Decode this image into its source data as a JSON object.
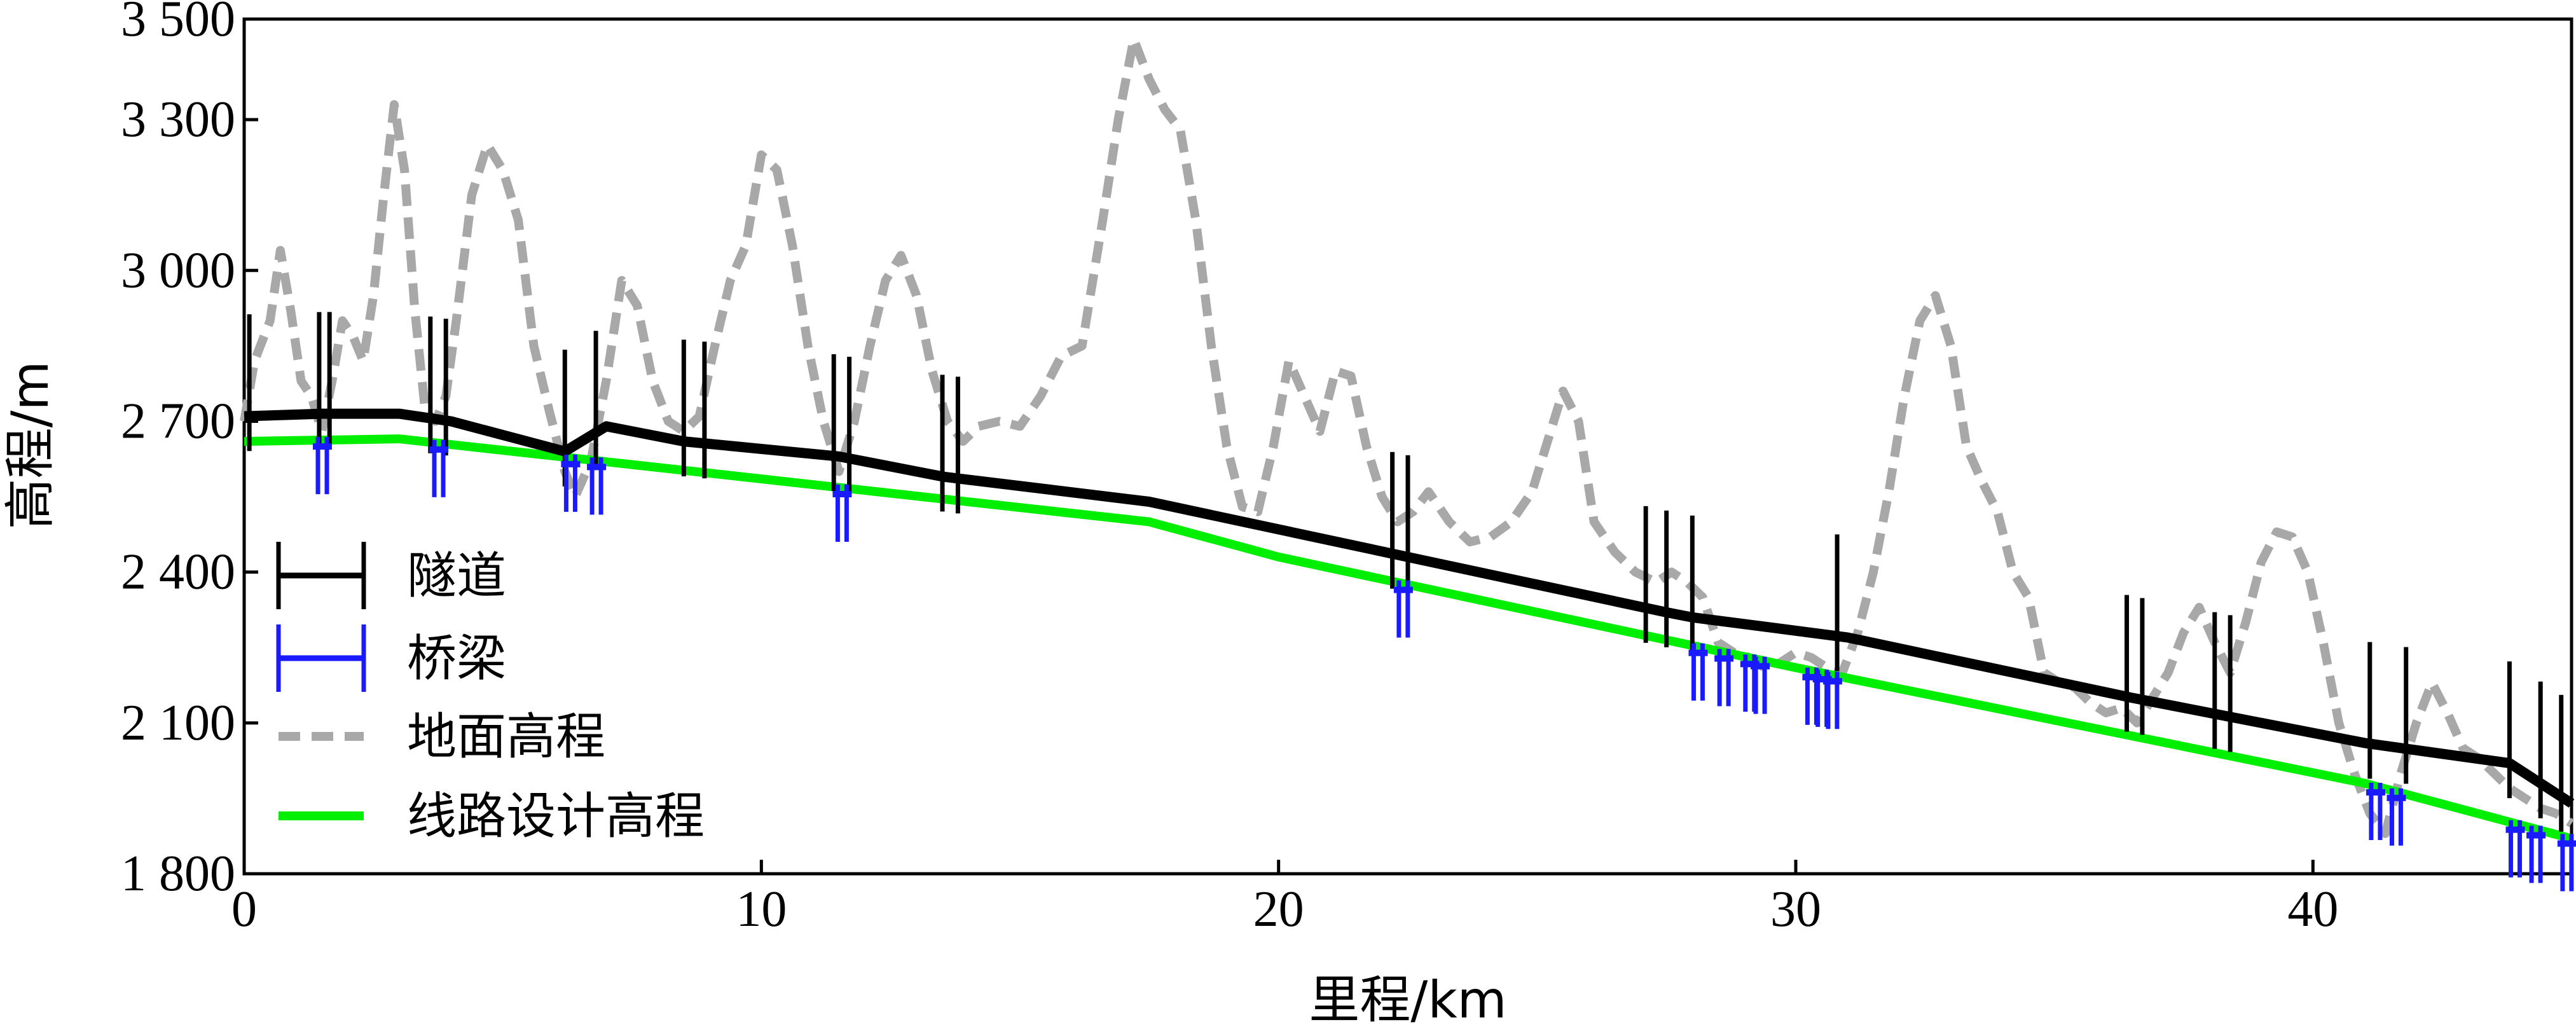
{
  "chart_data": {
    "type": "line",
    "title": "",
    "xlabel": "里程/km",
    "ylabel": "高程/m",
    "xlim": [
      0,
      45
    ],
    "ylim": [
      1800,
      3500
    ],
    "x_ticks": [
      0,
      10,
      20,
      30,
      40
    ],
    "x_tick_labels": [
      "0",
      "10",
      "20",
      "30",
      "40"
    ],
    "y_ticks": [
      1800,
      2100,
      2400,
      2700,
      3000,
      3300,
      3500
    ],
    "y_tick_labels": [
      "1 800",
      "2 100",
      "2 400",
      "2 700",
      "3 000",
      "3 300",
      "3 500"
    ],
    "legend": {
      "position": "lower-left",
      "entries": [
        {
          "label": "隧道",
          "color": "#000000",
          "style": "bracket-line"
        },
        {
          "label": "桥梁",
          "color": "#1a1aff",
          "style": "bracket-line"
        },
        {
          "label": "地面高程",
          "color": "#a8a8a8",
          "style": "dashed"
        },
        {
          "label": "线路设计高程",
          "color": "#00ee00",
          "style": "solid"
        }
      ]
    },
    "series": [
      {
        "name": "地面高程",
        "color": "#a8a8a8",
        "dash": true,
        "x": [
          0,
          0.2,
          0.5,
          0.7,
          0.9,
          1.1,
          1.3,
          1.5,
          1.7,
          1.9,
          2.1,
          2.3,
          2.5,
          2.7,
          2.9,
          3.1,
          3.3,
          3.5,
          3.7,
          3.9,
          4.1,
          4.4,
          4.7,
          5.0,
          5.3,
          5.6,
          5.9,
          6.2,
          6.4,
          6.7,
          7.0,
          7.3,
          7.6,
          7.9,
          8.2,
          8.5,
          8.8,
          9.1,
          9.4,
          9.7,
          10.0,
          10.3,
          10.6,
          10.9,
          11.2,
          11.5,
          11.8,
          12.1,
          12.4,
          12.7,
          13.0,
          13.3,
          13.6,
          13.9,
          14.2,
          14.6,
          15.0,
          15.4,
          15.8,
          16.2,
          16.6,
          16.9,
          17.2,
          17.5,
          17.8,
          18.1,
          18.4,
          18.7,
          19.0,
          19.3,
          19.6,
          19.9,
          20.2,
          20.5,
          20.8,
          21.1,
          21.4,
          21.7,
          22.0,
          22.3,
          22.6,
          22.9,
          23.3,
          23.7,
          24.1,
          24.5,
          24.9,
          25.2,
          25.5,
          25.8,
          26.1,
          26.5,
          26.9,
          27.3,
          27.6,
          27.9,
          28.2,
          28.5,
          28.8,
          29.1,
          29.4,
          29.7,
          30.0,
          30.3,
          30.6,
          30.9,
          31.2,
          31.5,
          31.8,
          32.1,
          32.4,
          32.7,
          33.0,
          33.3,
          33.6,
          33.9,
          34.2,
          34.5,
          34.8,
          35.1,
          35.4,
          35.7,
          36.0,
          36.3,
          36.6,
          36.9,
          37.2,
          37.5,
          37.8,
          38.1,
          38.4,
          38.7,
          39.0,
          39.3,
          39.6,
          39.9,
          40.2,
          40.5,
          40.8,
          41.1,
          41.4,
          41.7,
          42.0,
          42.3,
          42.6,
          42.9,
          43.2,
          43.5,
          43.8,
          44.1,
          44.4,
          44.7,
          45.0
        ],
        "values": [
          2700,
          2820,
          2900,
          3040,
          2920,
          2780,
          2750,
          2680,
          2780,
          2900,
          2870,
          2820,
          2950,
          3150,
          3330,
          3200,
          2920,
          2720,
          2700,
          2750,
          2900,
          3150,
          3250,
          3200,
          3100,
          2850,
          2720,
          2600,
          2550,
          2620,
          2780,
          2980,
          2930,
          2780,
          2700,
          2680,
          2710,
          2850,
          2980,
          3050,
          3230,
          3200,
          3050,
          2850,
          2700,
          2600,
          2700,
          2850,
          2980,
          3030,
          2950,
          2800,
          2700,
          2660,
          2690,
          2700,
          2690,
          2750,
          2830,
          2850,
          3100,
          3300,
          3460,
          3380,
          3320,
          3280,
          3100,
          2850,
          2650,
          2530,
          2520,
          2650,
          2820,
          2750,
          2680,
          2800,
          2790,
          2650,
          2550,
          2500,
          2520,
          2560,
          2500,
          2460,
          2470,
          2500,
          2560,
          2660,
          2760,
          2700,
          2500,
          2440,
          2400,
          2380,
          2400,
          2380,
          2350,
          2260,
          2240,
          2230,
          2210,
          2220,
          2240,
          2230,
          2210,
          2200,
          2280,
          2400,
          2560,
          2750,
          2900,
          2950,
          2850,
          2650,
          2580,
          2520,
          2400,
          2350,
          2200,
          2180,
          2170,
          2140,
          2120,
          2130,
          2100,
          2150,
          2200,
          2280,
          2330,
          2260,
          2200,
          2300,
          2420,
          2480,
          2470,
          2400,
          2260,
          2100,
          2000,
          1920,
          1880,
          2000,
          2100,
          2180,
          2120,
          2050,
          2030,
          2000,
          1970,
          1950,
          1930,
          1920,
          1900
        ]
      },
      {
        "name": "线路设计高程",
        "color": "#00ee00",
        "dash": false,
        "x": [
          0,
          3,
          17.5,
          20,
          30,
          41,
          45
        ],
        "values": [
          2660,
          2665,
          2500,
          2430,
          2210,
          1980,
          1870
        ]
      },
      {
        "name": "隧道",
        "color": "#000000",
        "dash": false,
        "x": [
          0,
          1.5,
          3,
          4,
          6.2,
          7,
          8.5,
          11.5,
          13.5,
          17.5,
          22.5,
          27.5,
          28,
          31,
          36.5,
          41,
          43.8,
          45
        ],
        "values": [
          2710,
          2715,
          2715,
          2700,
          2640,
          2690,
          2660,
          2630,
          2590,
          2540,
          2430,
          2320,
          2310,
          2270,
          2150,
          2060,
          2020,
          1940
        ]
      }
    ],
    "tunnel_marker_x": [
      0.1,
      1.45,
      1.65,
      3.6,
      3.9,
      6.2,
      6.8,
      8.5,
      8.9,
      11.4,
      11.7,
      13.5,
      13.8,
      22.2,
      22.5,
      27.1,
      27.5,
      28,
      30.8,
      36.4,
      36.7,
      38.1,
      38.4,
      41.1,
      41.8,
      43.8,
      44.4,
      44.8
    ],
    "bridge_marker_x": [
      1.5,
      3.75,
      6.3,
      6.8,
      11.55,
      22.4,
      28.1,
      28.6,
      29.1,
      29.3,
      30.3,
      30.5,
      30.7,
      41.2,
      41.6,
      43.9,
      44.3,
      44.9
    ]
  }
}
